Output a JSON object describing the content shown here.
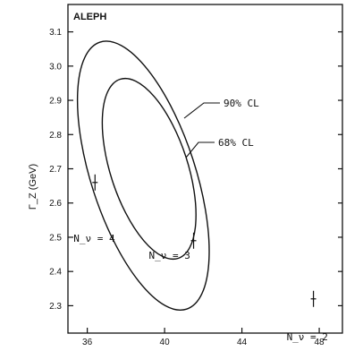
{
  "chart_data": {
    "type": "scatter",
    "title": "ALEPH",
    "ylabel": "Γ_Z (GeV)",
    "xlabel": "",
    "xlim": [
      35.0,
      49.2
    ],
    "ylim": [
      2.22,
      3.18
    ],
    "x_ticks": [
      "36",
      "40",
      "44",
      "48"
    ],
    "y_ticks": [
      "2.3",
      "2.4",
      "2.5",
      "2.6",
      "2.7",
      "2.8",
      "2.9",
      "3.0",
      "3.1"
    ],
    "contours": [
      {
        "label": "90% CL",
        "center": [
          38.9,
          2.68
        ],
        "rx": 2.7,
        "ry": 0.41,
        "rotation_deg": -18
      },
      {
        "label": "68% CL",
        "center": [
          39.2,
          2.7
        ],
        "rx": 2.0,
        "ry": 0.275,
        "rotation_deg": -18
      }
    ],
    "predictions": [
      {
        "label": "N_ν = 2",
        "x": 47.7,
        "y": 2.32
      },
      {
        "label": "N_ν = 3",
        "x": 41.5,
        "y": 2.49
      },
      {
        "label": "N_ν = 4",
        "x": 36.4,
        "y": 2.66
      }
    ],
    "grid": false,
    "colors": {
      "line": "#111111",
      "background": "#ffffff"
    }
  }
}
